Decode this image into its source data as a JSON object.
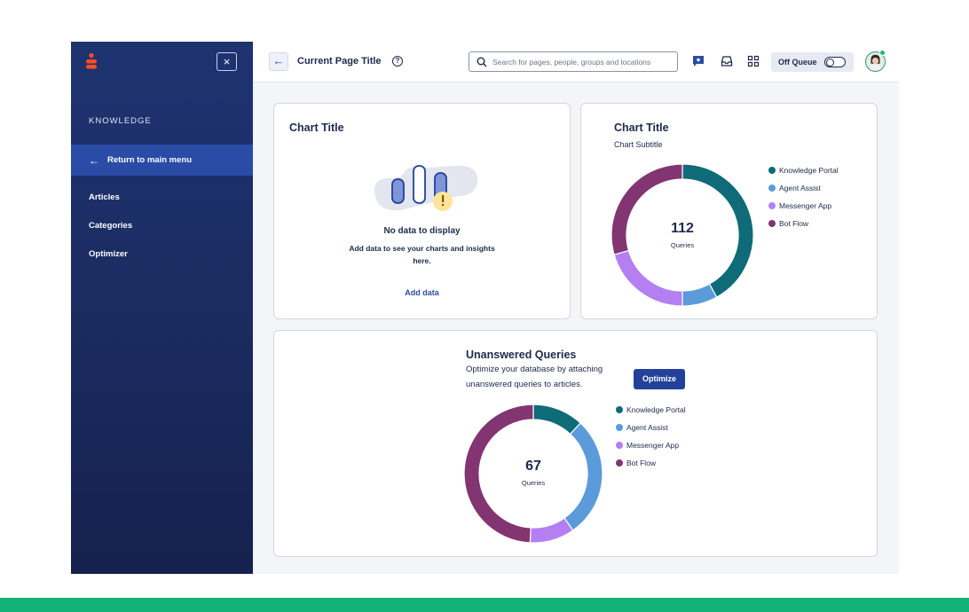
{
  "sidebar": {
    "section_title": "KNOWLEDGE",
    "return_label": "Return to main menu",
    "items": [
      {
        "label": "Articles"
      },
      {
        "label": "Categories"
      },
      {
        "label": "Optimizer"
      }
    ]
  },
  "header": {
    "page_title": "Current Page Title",
    "search_placeholder": "Search for pages, people, groups and locations",
    "queue_label": "Off Queue",
    "queue_on": false
  },
  "card_empty": {
    "title": "Chart Title",
    "empty_title": "No data to display",
    "empty_text_line1": "Add data to see your charts and insights",
    "empty_text_line2": "here.",
    "add_data_label": "Add data"
  },
  "card_chart": {
    "title": "Chart Title",
    "subtitle": "Chart Subtitle",
    "total": "112",
    "total_label": "Queries"
  },
  "card_unanswered": {
    "title": "Unanswered Queries",
    "text_line1": "Optimize your database by attaching",
    "text_line2": "unanswered queries to articles.",
    "optimize_label": "Optimize",
    "total": "67",
    "total_label": "Queries"
  },
  "colors": {
    "knowledge_portal": "#0f6b77",
    "agent_assist": "#5b9bd9",
    "messenger_app": "#b37ff1",
    "bot_flow": "#823571",
    "accent": "#2a4ca6",
    "brand": "#ff4f1f"
  },
  "chart_data": [
    {
      "type": "pie",
      "title": "Chart Title",
      "subtitle": "Chart Subtitle",
      "categories": [
        "Knowledge Portal",
        "Agent Assist",
        "Messenger App",
        "Bot Flow"
      ],
      "values": [
        47,
        9,
        23,
        33
      ],
      "total": 112,
      "legend": "right"
    },
    {
      "type": "pie",
      "title": "Unanswered Queries",
      "categories": [
        "Knowledge Portal",
        "Agent Assist",
        "Messenger App",
        "Bot Flow"
      ],
      "values": [
        8,
        19,
        7,
        33
      ],
      "total": 67,
      "legend": "right"
    }
  ]
}
